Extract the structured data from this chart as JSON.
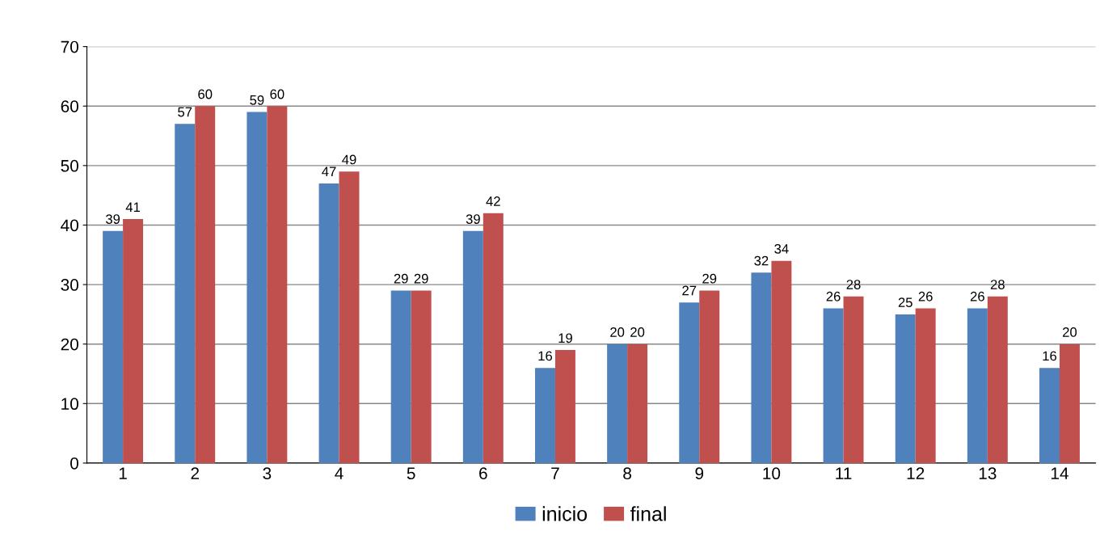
{
  "chart_data": {
    "type": "bar",
    "categories": [
      "1",
      "2",
      "3",
      "4",
      "5",
      "6",
      "7",
      "8",
      "9",
      "10",
      "11",
      "12",
      "13",
      "14"
    ],
    "series": [
      {
        "name": "inicio",
        "color": "#4f81bd",
        "values": [
          39,
          57,
          59,
          47,
          29,
          39,
          16,
          20,
          27,
          32,
          26,
          25,
          26,
          16
        ]
      },
      {
        "name": "final",
        "color": "#c0504d",
        "values": [
          41,
          60,
          60,
          49,
          29,
          42,
          19,
          20,
          29,
          34,
          28,
          26,
          28,
          20
        ]
      }
    ],
    "ylim": [
      0,
      70
    ],
    "yticks": [
      0,
      10,
      20,
      30,
      40,
      50,
      60,
      70
    ],
    "grid": "y",
    "legend": "bottom",
    "data_labels": true
  }
}
